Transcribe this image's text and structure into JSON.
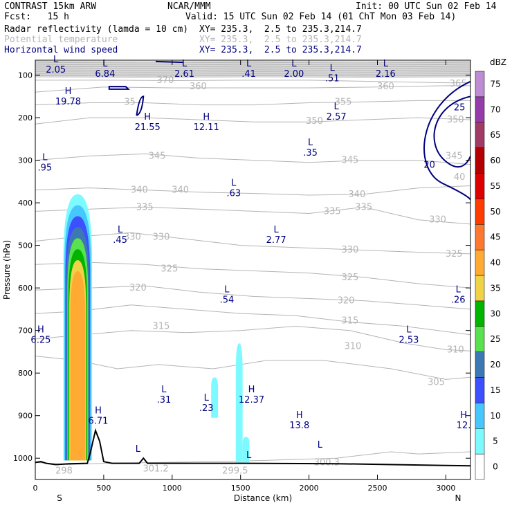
{
  "header": {
    "title": "CONTRAST 15km ARW",
    "source": "NCAR/MMM",
    "init": "Init: 00 UTC Sun 02 Feb 14",
    "fcst": "Fcst:   15 h",
    "valid": "Valid: 15 UTC Sun 02 Feb 14 (01 ChT Mon 03 Feb 14)"
  },
  "fields": [
    {
      "name": "Radar reflectivity (lamda = 10 cm)",
      "xy": "XY= 235.3,  2.5 to 235.3,214.7",
      "color": "#000000"
    },
    {
      "name": "Potential temperature",
      "xy": "XY= 235.3,  2.5 to 235.3,214.7",
      "color": "#b4b4b4"
    },
    {
      "name": "Horizontal wind speed",
      "xy": "XY= 235.3,  2.5 to 235.3,214.7",
      "color": "#000080"
    }
  ],
  "chart_data": {
    "type": "cross-section",
    "xlabel": "Distance (km)",
    "ylabel": "Pressure (hPa)",
    "xlim": [
      0,
      3180
    ],
    "ylim": [
      1050,
      65
    ],
    "xticks": [
      0,
      500,
      1000,
      1500,
      2000,
      2500,
      3000
    ],
    "yticks": [
      100,
      200,
      300,
      400,
      500,
      600,
      700,
      800,
      900,
      1000
    ],
    "endpoints": {
      "left": "S",
      "right": "N"
    },
    "colorbar": {
      "unit": "dBZ",
      "levels": [
        0,
        5,
        10,
        15,
        20,
        25,
        30,
        35,
        40,
        45,
        50,
        55,
        60,
        65,
        70,
        75
      ],
      "colors": [
        "#ffffff",
        "#7dfaff",
        "#46c8ff",
        "#3c50ff",
        "#3c78b4",
        "#5ae150",
        "#00b400",
        "#f0d246",
        "#ffaa32",
        "#ff7832",
        "#ff3c00",
        "#dc0000",
        "#b40000",
        "#a03c64",
        "#963caa",
        "#be8cd2"
      ]
    },
    "theta_labels": [
      {
        "value": "370",
        "x": 950,
        "p": 112
      },
      {
        "value": "360",
        "x": 1190,
        "p": 127
      },
      {
        "value": "360",
        "x": 2560,
        "p": 127
      },
      {
        "value": "365",
        "x": 3090,
        "p": 120
      },
      {
        "value": "35",
        "x": 690,
        "p": 163
      },
      {
        "value": "355",
        "x": 2250,
        "p": 163
      },
      {
        "value": "350",
        "x": 2040,
        "p": 208
      },
      {
        "value": "350",
        "x": 3070,
        "p": 205
      },
      {
        "value": "345",
        "x": 890,
        "p": 290
      },
      {
        "value": "345",
        "x": 2300,
        "p": 300
      },
      {
        "value": "345",
        "x": 3060,
        "p": 290
      },
      {
        "value": "340",
        "x": 760,
        "p": 370
      },
      {
        "value": "340",
        "x": 1060,
        "p": 370
      },
      {
        "value": "340",
        "x": 2350,
        "p": 380
      },
      {
        "value": "40",
        "x": 3100,
        "p": 340
      },
      {
        "value": "335",
        "x": 800,
        "p": 410
      },
      {
        "value": "335",
        "x": 2170,
        "p": 420
      },
      {
        "value": "335",
        "x": 2400,
        "p": 410
      },
      {
        "value": "330",
        "x": 2940,
        "p": 440
      },
      {
        "value": "330",
        "x": 710,
        "p": 480
      },
      {
        "value": "330",
        "x": 920,
        "p": 480
      },
      {
        "value": "330",
        "x": 2300,
        "p": 510
      },
      {
        "value": "325",
        "x": 3060,
        "p": 520
      },
      {
        "value": "325",
        "x": 980,
        "p": 555
      },
      {
        "value": "325",
        "x": 2300,
        "p": 575
      },
      {
        "value": "320",
        "x": 750,
        "p": 600
      },
      {
        "value": "320",
        "x": 2270,
        "p": 630
      },
      {
        "value": "315",
        "x": 920,
        "p": 690
      },
      {
        "value": "315",
        "x": 2300,
        "p": 677
      },
      {
        "value": "310",
        "x": 2320,
        "p": 737
      },
      {
        "value": "310",
        "x": 3070,
        "p": 745
      },
      {
        "value": "305",
        "x": 2930,
        "p": 822
      },
      {
        "value": "300.3",
        "x": 2130,
        "p": 1010
      },
      {
        "value": "301.2",
        "x": 880,
        "p": 1025
      },
      {
        "value": "299.5",
        "x": 1460,
        "p": 1030
      },
      {
        "value": "298",
        "x": 210,
        "p": 1030
      }
    ],
    "wind_labels": [
      {
        "value": "25",
        "x": 3100,
        "p": 175
      },
      {
        "value": "20",
        "x": 2880,
        "p": 310
      }
    ],
    "extrema": [
      {
        "letter": "L",
        "value": "2.05",
        "x": 150,
        "p": 70
      },
      {
        "letter": "L",
        "value": "6.84",
        "x": 510,
        "p": 80
      },
      {
        "letter": "L",
        "value": "2.61",
        "x": 1090,
        "p": 80
      },
      {
        "letter": "L",
        "value": ".41",
        "x": 1560,
        "p": 80
      },
      {
        "letter": "L",
        "value": "2.00",
        "x": 1890,
        "p": 80
      },
      {
        "letter": "L",
        "value": ".51",
        "x": 2170,
        "p": 90
      },
      {
        "letter": "L",
        "value": "2.16",
        "x": 2560,
        "p": 80
      },
      {
        "letter": "H",
        "value": "19.78",
        "x": 240,
        "p": 145
      },
      {
        "letter": "H",
        "value": "21.55",
        "x": 820,
        "p": 205
      },
      {
        "letter": "H",
        "value": "12.11",
        "x": 1250,
        "p": 205
      },
      {
        "letter": "L",
        "value": "2.57",
        "x": 2200,
        "p": 180
      },
      {
        "letter": "L",
        "value": ".35",
        "x": 2010,
        "p": 265
      },
      {
        "letter": "L",
        "value": ".95",
        "x": 70,
        "p": 300
      },
      {
        "letter": "L",
        "value": ".63",
        "x": 1450,
        "p": 360
      },
      {
        "letter": "L",
        "value": ".45",
        "x": 620,
        "p": 470
      },
      {
        "letter": "L",
        "value": "2.77",
        "x": 1760,
        "p": 470
      },
      {
        "letter": "L",
        "value": ".54",
        "x": 1400,
        "p": 610
      },
      {
        "letter": "L",
        "value": ".26",
        "x": 3090,
        "p": 610
      },
      {
        "letter": "H",
        "value": "6.25",
        "x": 40,
        "p": 705
      },
      {
        "letter": "L",
        "value": "2.53",
        "x": 2730,
        "p": 705
      },
      {
        "letter": "L",
        "value": ".31",
        "x": 940,
        "p": 845
      },
      {
        "letter": "H",
        "value": "12.37",
        "x": 1580,
        "p": 845
      },
      {
        "letter": "L",
        "value": ".23",
        "x": 1250,
        "p": 865
      },
      {
        "letter": "H",
        "value": "6.71",
        "x": 460,
        "p": 895
      },
      {
        "letter": "H",
        "value": "13.8",
        "x": 1930,
        "p": 905
      },
      {
        "letter": "H",
        "value": "12.",
        "x": 3130,
        "p": 905
      },
      {
        "letter": "L",
        "value": "",
        "x": 1560,
        "p": 1000
      },
      {
        "letter": "L",
        "value": "",
        "x": 2080,
        "p": 975
      },
      {
        "letter": "L",
        "value": "",
        "x": 750,
        "p": 985
      }
    ],
    "reflectivity_cells": [
      {
        "x_center": 310,
        "top_p": 380,
        "base_p": 1005,
        "max_dbz": 40
      },
      {
        "x_center": 1490,
        "top_p": 730,
        "base_p": 1010,
        "max_dbz": 5
      },
      {
        "x_center": 1310,
        "top_p": 810,
        "base_p": 905,
        "max_dbz": 5
      },
      {
        "x_center": 1540,
        "top_p": 950,
        "base_p": 1010,
        "max_dbz": 5
      }
    ],
    "terrain_peak": {
      "x": 440,
      "p": 935
    }
  }
}
